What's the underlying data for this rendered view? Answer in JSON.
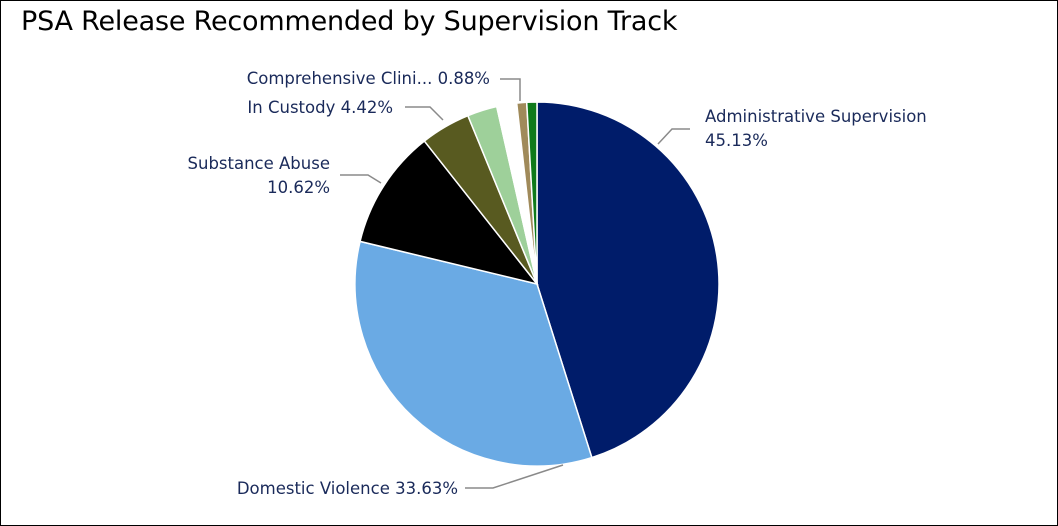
{
  "chart_data": {
    "type": "pie",
    "title": "PSA Release Recommended by Supervision Track",
    "slices": [
      {
        "label": "Administrative Supervision",
        "value": 45.13,
        "color": "#001c6a",
        "label_text": "Administrative Supervision",
        "value_text": "45.13%"
      },
      {
        "label": "Domestic Violence",
        "value": 33.63,
        "color": "#6aaae4",
        "label_text": "Domestic Violence 33.63%",
        "value_text": ""
      },
      {
        "label": "Substance Abuse",
        "value": 10.62,
        "color": "#000000",
        "label_text": "Substance Abuse",
        "value_text": "10.62%"
      },
      {
        "label": "In Custody",
        "value": 4.42,
        "color": "#585a20",
        "label_text": "In Custody 4.42%",
        "value_text": ""
      },
      {
        "label": "",
        "value": 2.65,
        "color": "#9ed09a",
        "label_text": "",
        "value_text": ""
      },
      {
        "label": "",
        "value": 1.77,
        "color": "#ffffff",
        "label_text": "",
        "value_text": ""
      },
      {
        "label": "Comprehensive Clini...",
        "value": 0.88,
        "color": "#a08a5a",
        "label_text": "Comprehensive Clini... 0.88%",
        "value_text": ""
      },
      {
        "label": "",
        "value": 0.9,
        "color": "#0f7a1a",
        "label_text": "",
        "value_text": ""
      }
    ]
  }
}
